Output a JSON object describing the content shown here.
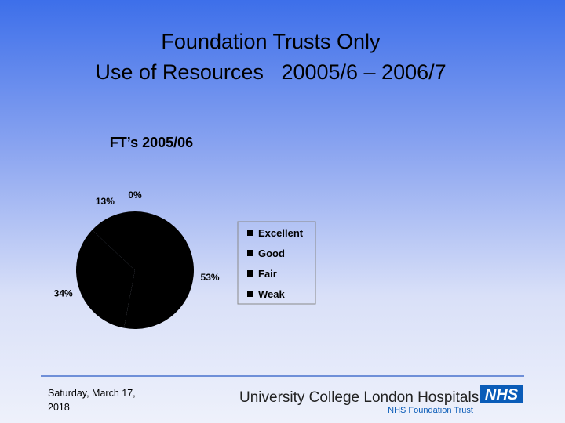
{
  "slide": {
    "title": [
      "Foundation Trusts Only",
      "Use of Resources   20005/6 – 2006/7"
    ],
    "date": "Saturday, March 17, 2018",
    "logo": {
      "name": "University College London Hospitals",
      "badge": "NHS",
      "subtitle": "NHS Foundation Trust"
    }
  },
  "chart_data": {
    "type": "pie",
    "title": "FT’s 2005/06",
    "categories": [
      "Excellent",
      "Good",
      "Fair",
      "Weak"
    ],
    "values": [
      0,
      53,
      34,
      13
    ],
    "value_labels": [
      "0%",
      "53%",
      "34%",
      "13%"
    ],
    "colors": [
      "#000000",
      "#000000",
      "#000000",
      "#000000"
    ],
    "legend": "right"
  }
}
